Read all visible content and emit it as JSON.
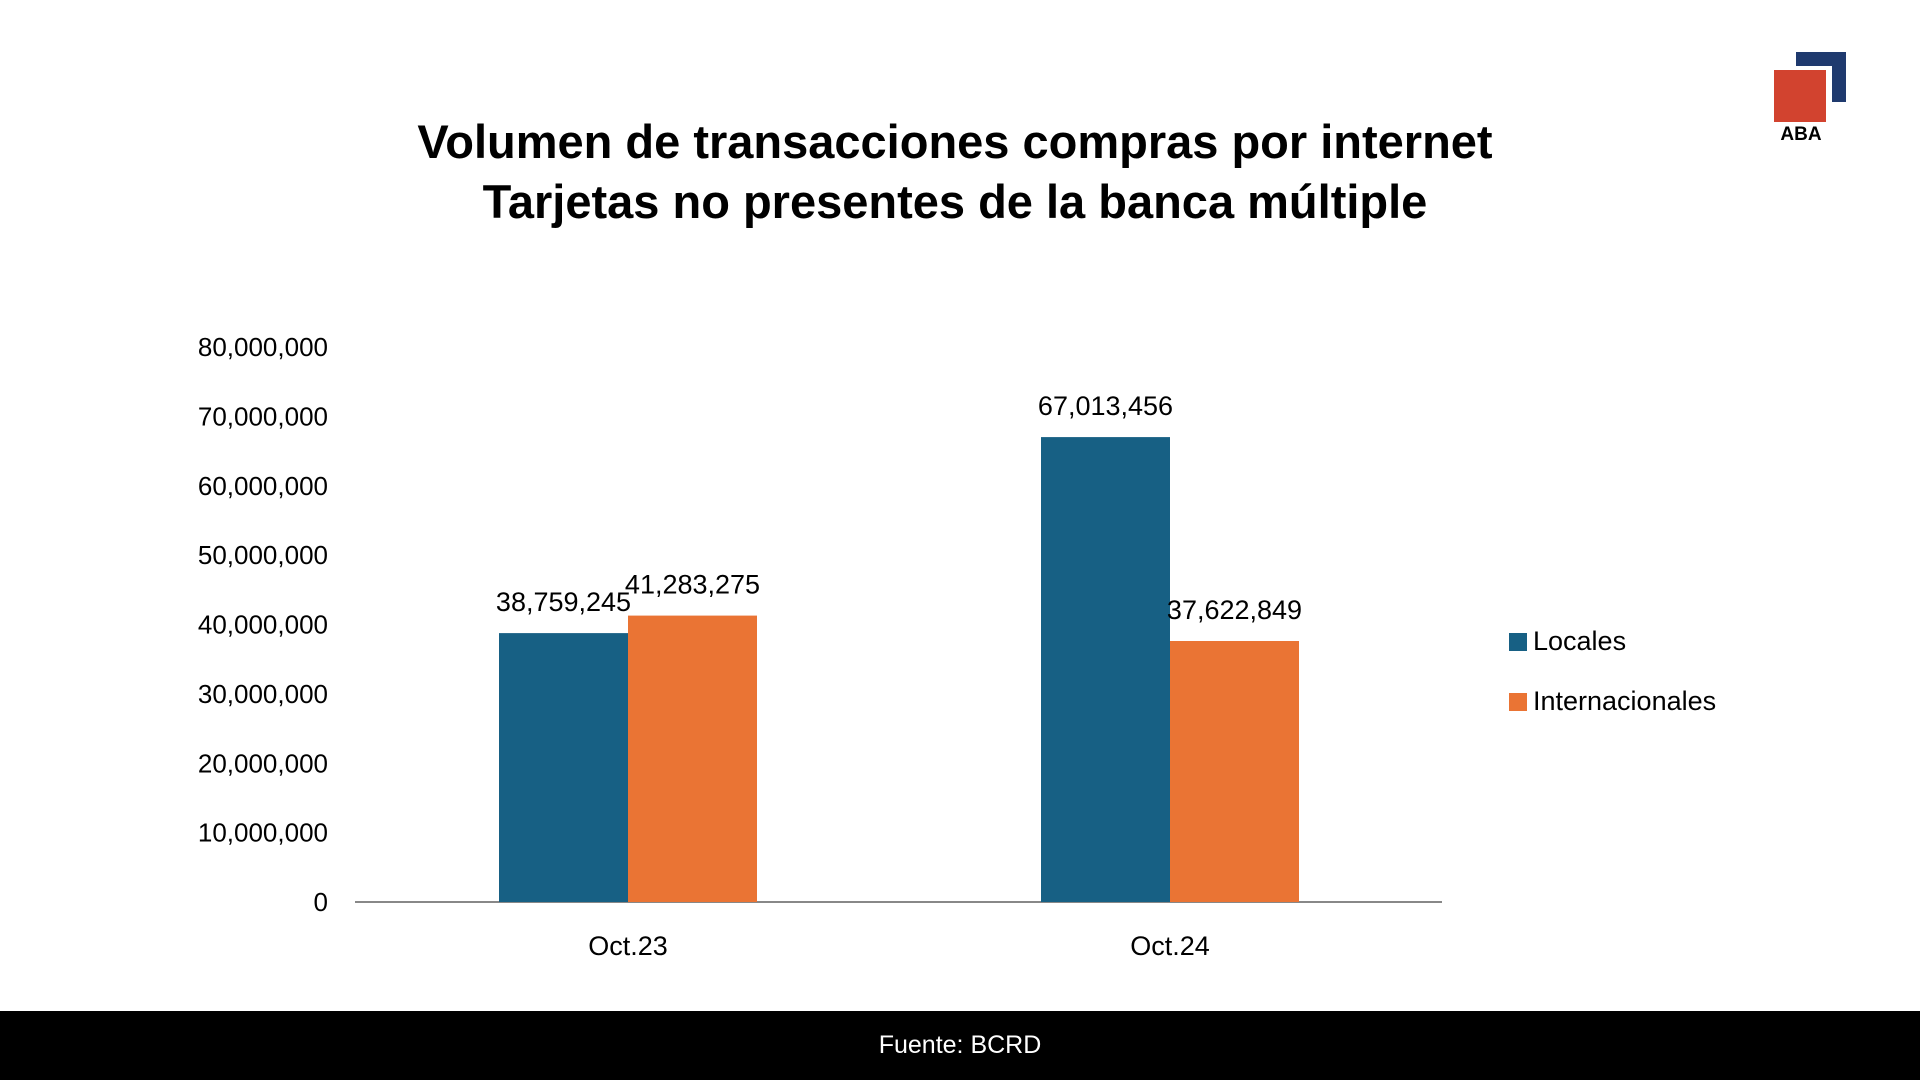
{
  "logo": {
    "text": "ABA"
  },
  "footer": {
    "source": "Fuente: BCRD"
  },
  "chart_data": {
    "type": "bar",
    "title": "Volumen de transacciones compras por internet",
    "subtitle": "Tarjetas no presentes de la banca múltiple",
    "categories": [
      "Oct.23",
      "Oct.24"
    ],
    "series": [
      {
        "name": "Locales",
        "color": "#176084",
        "values": [
          38759245,
          67013456
        ],
        "labels": [
          "38,759,245",
          "67,013,456"
        ]
      },
      {
        "name": "Internacionales",
        "color": "#ea7434",
        "values": [
          41283275,
          37622849
        ],
        "labels": [
          "41,283,275",
          "37,622,849"
        ]
      }
    ],
    "ylim": [
      0,
      80000000
    ],
    "yticks": [
      "0",
      "10,000,000",
      "20,000,000",
      "30,000,000",
      "40,000,000",
      "50,000,000",
      "60,000,000",
      "70,000,000",
      "80,000,000"
    ],
    "grid": false,
    "legend": "right"
  }
}
